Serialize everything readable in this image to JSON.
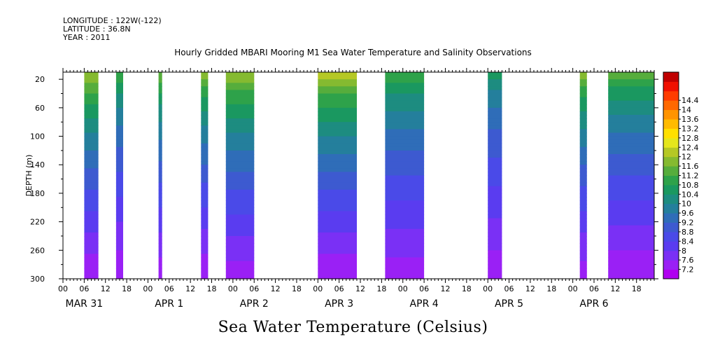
{
  "header": {
    "longitude": "LONGITUDE : 122W(-122)",
    "latitude": "LATITUDE : 36.8N",
    "year": "YEAR : 2011"
  },
  "title": "Hourly Gridded MBARI Mooring M1 Sea Water Temperature and Salinity Observations",
  "bottom_title": "Sea Water Temperature (Celsius)",
  "chart_data": {
    "type": "heatmap",
    "title": "Hourly Gridded MBARI Mooring M1 Sea Water Temperature and Salinity Observations",
    "ylabel": "DEPTH (m)",
    "xlabel": "",
    "y_range_m": [
      10,
      300
    ],
    "y_inverted": true,
    "y_ticks": [
      20,
      60,
      100,
      140,
      180,
      220,
      260,
      300
    ],
    "x_start": "2011-03-31T00:00",
    "x_end": "2011-04-06T23:00",
    "hour_tick_labels": [
      "00",
      "06",
      "12",
      "18"
    ],
    "day_labels": [
      "MAR 31",
      "APR  1",
      "APR  2",
      "APR  3",
      "APR  4",
      "APR  5",
      "APR  6"
    ],
    "colorbar_levels": [
      7.2,
      7.6,
      8,
      8.4,
      8.8,
      9.2,
      9.6,
      10,
      10.4,
      10.8,
      11.2,
      11.6,
      12,
      12.4,
      12.8,
      13.2,
      13.6,
      14,
      14.4
    ],
    "colorbar_colors": [
      "#b000f0",
      "#9a20f5",
      "#7a30f5",
      "#5a3cf0",
      "#4a4ae8",
      "#3d5ad0",
      "#2f6db8",
      "#247f9c",
      "#1d8c80",
      "#1a9860",
      "#2ea24a",
      "#56ad3c",
      "#85ba30",
      "#b5c825",
      "#e5e61c",
      "#ffe000",
      "#ffbb00",
      "#ff9400",
      "#ff6800",
      "#ff3c00",
      "#f01000",
      "#c00000"
    ],
    "data_segments": [
      {
        "start": "2011-03-31T06:00",
        "end": "2011-03-31T10:00",
        "surface_temp": 11.9,
        "bottom_temp": 7.2
      },
      {
        "start": "2011-03-31T15:00",
        "end": "2011-03-31T17:00",
        "surface_temp": 11.0,
        "bottom_temp": 7.2
      },
      {
        "start": "2011-04-01T03:00",
        "end": "2011-04-01T04:00",
        "surface_temp": 11.4,
        "bottom_temp": 7.3
      },
      {
        "start": "2011-04-01T15:00",
        "end": "2011-04-01T17:00",
        "surface_temp": 11.6,
        "bottom_temp": 7.2
      },
      {
        "start": "2011-04-01T22:00",
        "end": "2011-04-02T06:00",
        "surface_temp": 11.8,
        "bottom_temp": 7.3
      },
      {
        "start": "2011-04-03T00:00",
        "end": "2011-04-03T11:00",
        "surface_temp": 12.0,
        "bottom_temp": 7.2
      },
      {
        "start": "2011-04-03T19:00",
        "end": "2011-04-04T06:00",
        "surface_temp": 11.0,
        "bottom_temp": 7.3
      },
      {
        "start": "2011-04-05T00:00",
        "end": "2011-04-05T04:00",
        "surface_temp": 10.4,
        "bottom_temp": 7.3
      },
      {
        "start": "2011-04-06T02:00",
        "end": "2011-04-06T04:00",
        "surface_temp": 11.6,
        "bottom_temp": 7.3
      },
      {
        "start": "2011-04-06T10:00",
        "end": "2011-04-06T23:00",
        "surface_temp": 11.2,
        "bottom_temp": 7.2
      }
    ]
  }
}
